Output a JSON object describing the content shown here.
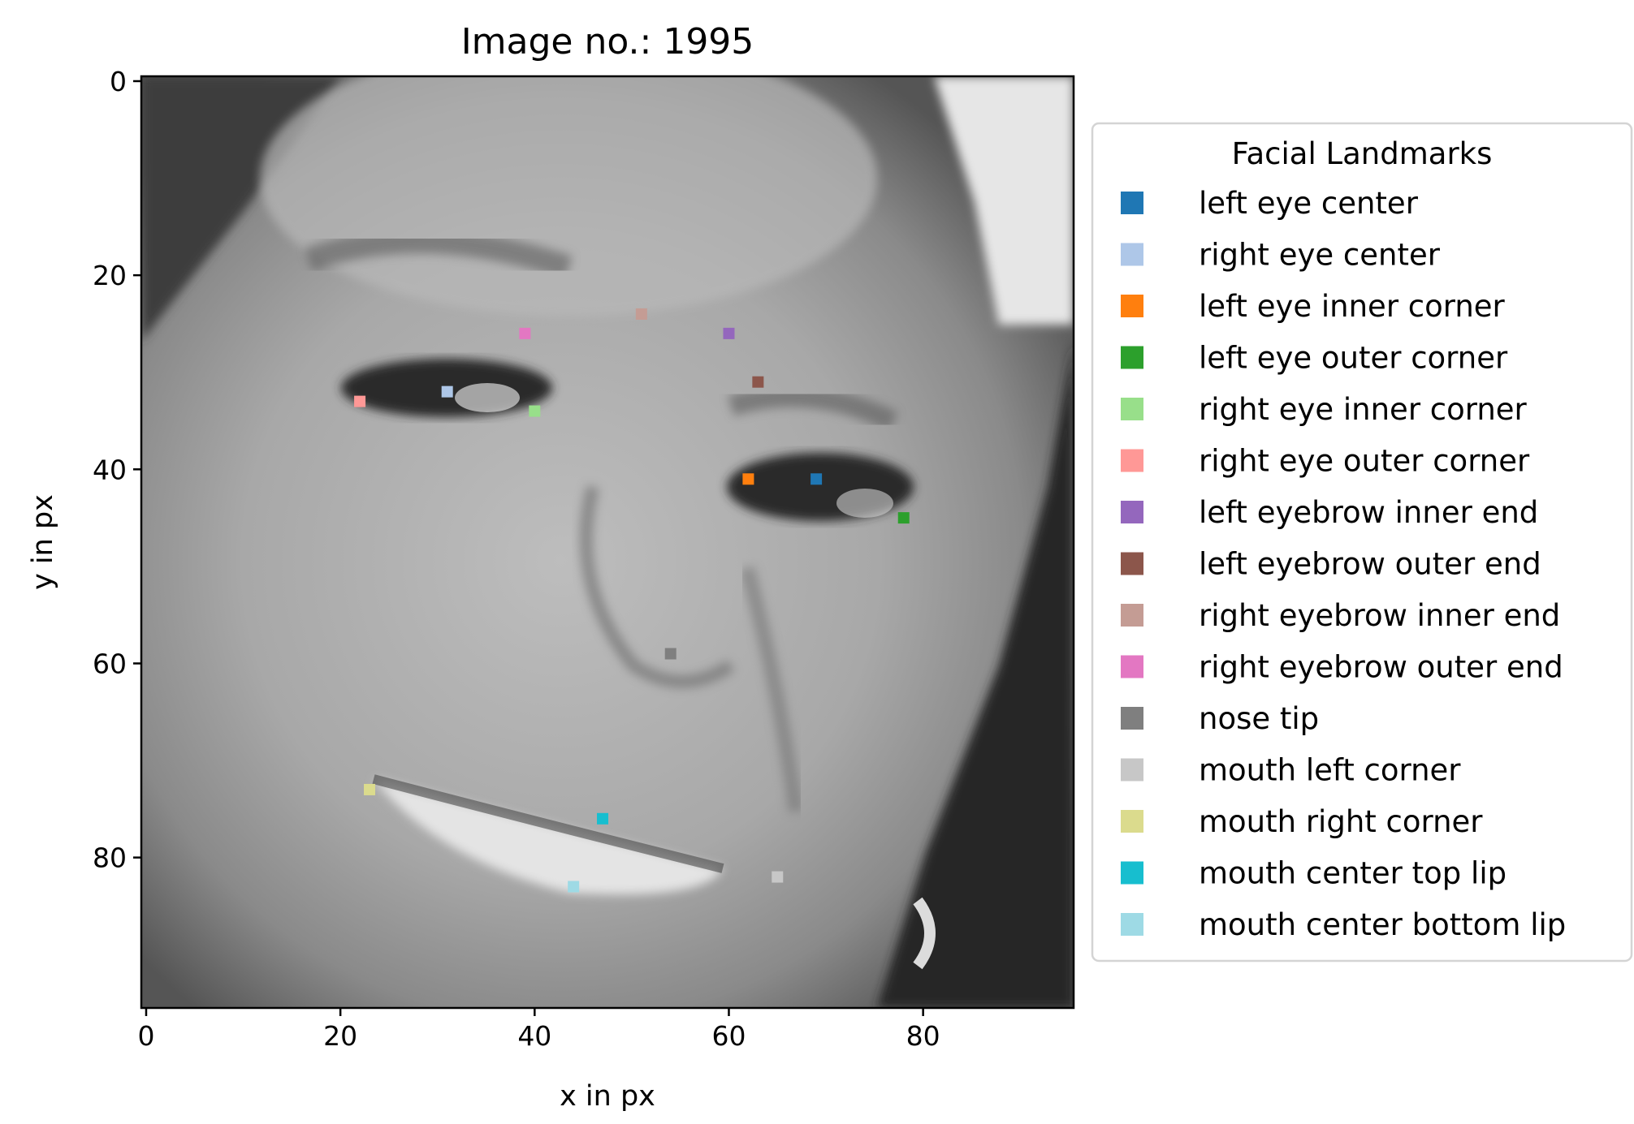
{
  "chart_data": {
    "type": "scatter",
    "title": "Image no.: 1995",
    "xlabel": "x in px",
    "ylabel": "y in px",
    "xlim": [
      -0.5,
      95.5
    ],
    "ylim": [
      95.5,
      -0.5
    ],
    "x_ticks": [
      0,
      20,
      40,
      60,
      80
    ],
    "y_ticks": [
      0,
      20,
      40,
      60,
      80
    ],
    "grid": false,
    "background": "grayscale face photograph (96x96 px)",
    "legend": {
      "title": "Facial Landmarks",
      "placement": "right, outside plot"
    },
    "series": [
      {
        "name": "left eye center",
        "color": "#1f77b4",
        "x": 69,
        "y": 41
      },
      {
        "name": "right eye center",
        "color": "#aec7e8",
        "x": 31,
        "y": 32
      },
      {
        "name": "left eye inner corner",
        "color": "#ff7f0e",
        "x": 62,
        "y": 41
      },
      {
        "name": "left eye outer corner",
        "color": "#2ca02c",
        "x": 78,
        "y": 45
      },
      {
        "name": "right eye inner corner",
        "color": "#98df8a",
        "x": 40,
        "y": 34
      },
      {
        "name": "right eye outer corner",
        "color": "#ff9896",
        "x": 22,
        "y": 33
      },
      {
        "name": "left eyebrow inner end",
        "color": "#9467bd",
        "x": 60,
        "y": 26
      },
      {
        "name": "left eyebrow outer end",
        "color": "#8c564b",
        "x": 63,
        "y": 31
      },
      {
        "name": "right eyebrow inner end",
        "color": "#c49c94",
        "x": 51,
        "y": 24
      },
      {
        "name": "right eyebrow outer end",
        "color": "#e377c2",
        "x": 39,
        "y": 26
      },
      {
        "name": "nose tip",
        "color": "#7f7f7f",
        "x": 54,
        "y": 59
      },
      {
        "name": "mouth left corner",
        "color": "#c7c7c7",
        "x": 65,
        "y": 82
      },
      {
        "name": "mouth right corner",
        "color": "#dbdb8d",
        "x": 23,
        "y": 73
      },
      {
        "name": "mouth center top lip",
        "color": "#17becf",
        "x": 47,
        "y": 76
      },
      {
        "name": "mouth center bottom lip",
        "color": "#9edae5",
        "x": 44,
        "y": 83
      }
    ]
  }
}
